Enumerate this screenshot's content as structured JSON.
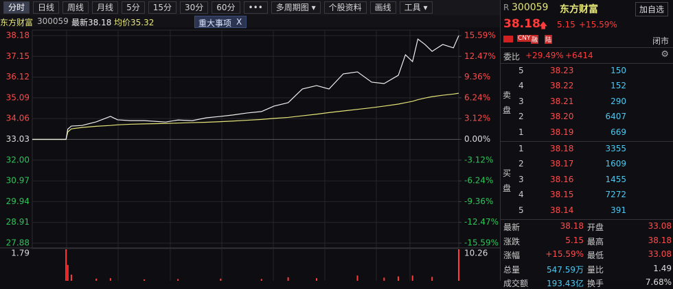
{
  "toolbar": {
    "buttons": [
      "分时",
      "日线",
      "周线",
      "月线",
      "5分",
      "15分",
      "30分",
      "60分",
      "•••",
      "多周期图 ▾",
      "个股资料",
      "画线",
      "工具 ▾"
    ]
  },
  "info": {
    "name": "东方财富",
    "code": "300059",
    "last": "最新38.18",
    "avg": "均价35.32",
    "event": "重大事项",
    "close": "X"
  },
  "chart_data": [
    {
      "type": "line",
      "x": [
        0,
        19,
        20,
        22,
        28,
        36,
        44,
        48,
        55,
        63,
        75,
        82,
        90,
        98,
        106,
        113,
        121,
        129,
        136,
        144,
        152,
        160,
        167,
        175,
        183,
        191,
        198,
        206,
        210,
        214,
        217,
        221,
        225,
        231,
        237,
        240
      ],
      "series": [
        {
          "color": "#f0f0f0",
          "values": [
            33.03,
            33.03,
            33.54,
            33.69,
            33.72,
            33.9,
            34.17,
            34.0,
            33.96,
            33.96,
            33.89,
            33.99,
            33.96,
            34.1,
            34.17,
            34.24,
            34.34,
            34.41,
            34.68,
            34.85,
            35.53,
            35.7,
            35.53,
            36.28,
            36.38,
            35.87,
            35.8,
            36.21,
            37.23,
            36.89,
            38.01,
            37.74,
            37.4,
            37.74,
            37.57,
            38.18
          ]
        },
        {
          "color": "#e6e67a",
          "values": [
            33.03,
            33.03,
            33.4,
            33.55,
            33.62,
            33.68,
            33.72,
            33.75,
            33.78,
            33.8,
            33.82,
            33.84,
            33.86,
            33.88,
            33.91,
            33.94,
            33.98,
            34.02,
            34.07,
            34.12,
            34.2,
            34.28,
            34.36,
            34.44,
            34.52,
            34.6,
            34.68,
            34.78,
            34.85,
            34.92,
            35.0,
            35.08,
            35.15,
            35.22,
            35.28,
            35.32
          ]
        }
      ],
      "xlim": [
        0,
        240
      ],
      "ylim": [
        27.88,
        38.18
      ],
      "yticks": [
        38.18,
        37.15,
        36.12,
        35.09,
        34.06,
        33.03,
        {
          "value": 32,
          "label": "32.00"
        },
        30.97,
        29.94,
        28.91,
        27.88
      ],
      "y2lim": [
        -15.59,
        15.59
      ],
      "y2ticks": [
        {
          "value": 15.59,
          "label": "15.59%"
        },
        {
          "value": 12.47,
          "label": "12.47%"
        },
        {
          "value": 9.36,
          "label": "9.36%"
        },
        {
          "value": 6.24,
          "label": "6.24%"
        },
        {
          "value": 3.12,
          "label": "3.12%"
        },
        {
          "value": 0,
          "label": "0.00%"
        },
        {
          "value": -3.12,
          "label": "-3.12%"
        },
        {
          "value": -6.24,
          "label": "-6.24%"
        },
        {
          "value": -9.36,
          "label": "-9.36%"
        },
        {
          "value": -12.47,
          "label": "-12.47%"
        },
        {
          "value": -15.59,
          "label": "-15.59%"
        }
      ],
      "grid": true
    },
    {
      "type": "bar",
      "x": [
        19,
        20,
        22,
        36,
        44,
        63,
        82,
        106,
        129,
        144,
        160,
        183,
        198,
        206,
        214,
        225,
        240
      ],
      "series": [
        {
          "color": "#ff3b3b",
          "values": [
            1.79,
            0.9,
            0.35,
            0.12,
            0.15,
            0.08,
            0.1,
            0.12,
            0.1,
            0.2,
            0.15,
            0.3,
            0.18,
            0.25,
            0.3,
            0.22,
            1.79
          ]
        }
      ],
      "xlim": [
        0,
        240
      ],
      "ylim": [
        0,
        1.79
      ],
      "yticks": [
        1.79
      ],
      "y2lim": [
        0,
        10.26
      ],
      "y2ticks": [
        10.26
      ]
    }
  ],
  "quote": {
    "market": "R",
    "code": "300059",
    "name": "东方财富",
    "watch": "加自选",
    "price": "38.18",
    "arrow": "🡅",
    "change": "5.15",
    "pct": "+15.59%",
    "badges": [
      "CNY",
      "融",
      "陆"
    ],
    "status": "闭市",
    "ratio_label": "委比",
    "ratio": "+29.49%",
    "diff": "+6414",
    "sell_label": "卖盘",
    "buy_label": "买盘",
    "sell": [
      [
        "5",
        "38.23",
        "150"
      ],
      [
        "4",
        "38.22",
        "152"
      ],
      [
        "3",
        "38.21",
        "290"
      ],
      [
        "2",
        "38.20",
        "6407"
      ],
      [
        "1",
        "38.19",
        "669"
      ]
    ],
    "buy": [
      [
        "1",
        "38.18",
        "3355"
      ],
      [
        "2",
        "38.17",
        "1609"
      ],
      [
        "3",
        "38.16",
        "1455"
      ],
      [
        "4",
        "38.15",
        "7272"
      ],
      [
        "5",
        "38.14",
        "391"
      ]
    ],
    "stats": [
      [
        "最新",
        "38.18",
        "开盘",
        "33.08"
      ],
      [
        "涨跌",
        "5.15",
        "最高",
        "38.18"
      ],
      [
        "涨幅",
        "+15.59%",
        "最低",
        "33.08"
      ],
      [
        "总量",
        "547.59万",
        "量比",
        "1.49"
      ],
      [
        "成交额",
        "193.43亿",
        "换手",
        "7.68%"
      ]
    ]
  }
}
